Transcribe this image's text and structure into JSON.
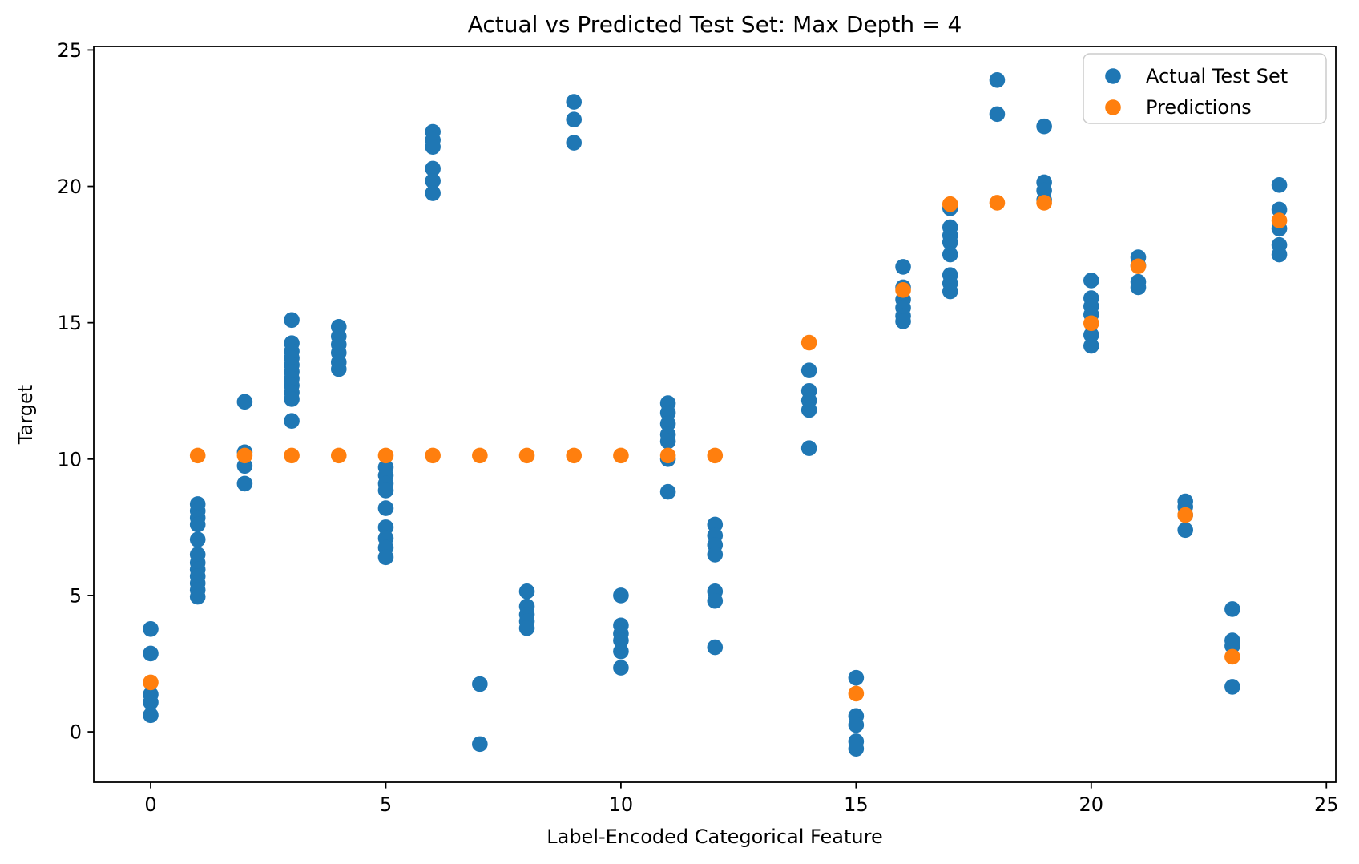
{
  "chart_data": {
    "type": "scatter",
    "title": "Actual vs Predicted Test Set: Max Depth = 4",
    "xlabel": "Label-Encoded Categorical Feature",
    "ylabel": "Target",
    "xlim": [
      -1.21,
      25.2
    ],
    "ylim": [
      -1.85,
      25.13
    ],
    "xticks": [
      0,
      5,
      10,
      15,
      20,
      25
    ],
    "yticks": [
      0,
      5,
      10,
      15,
      20,
      25
    ],
    "grid": false,
    "legend_position": "upper right",
    "marker_radius_px": 9.8,
    "series": [
      {
        "name": "Actual Test Set",
        "color": "#1f77b4",
        "points": [
          [
            0,
            3.77
          ],
          [
            0,
            2.87
          ],
          [
            0,
            1.37
          ],
          [
            0,
            1.08
          ],
          [
            0,
            0.61
          ],
          [
            1,
            8.35
          ],
          [
            1,
            8.1
          ],
          [
            1,
            7.85
          ],
          [
            1,
            7.6
          ],
          [
            1,
            7.05
          ],
          [
            1,
            6.5
          ],
          [
            1,
            6.2
          ],
          [
            1,
            5.95
          ],
          [
            1,
            5.7
          ],
          [
            1,
            5.45
          ],
          [
            1,
            5.2
          ],
          [
            1,
            4.95
          ],
          [
            2,
            12.1
          ],
          [
            2,
            10.25
          ],
          [
            2,
            9.75
          ],
          [
            2,
            9.1
          ],
          [
            3,
            15.1
          ],
          [
            3,
            14.25
          ],
          [
            3,
            13.95
          ],
          [
            3,
            13.7
          ],
          [
            3,
            13.45
          ],
          [
            3,
            13.2
          ],
          [
            3,
            12.95
          ],
          [
            3,
            12.7
          ],
          [
            3,
            12.45
          ],
          [
            3,
            12.2
          ],
          [
            3,
            11.4
          ],
          [
            4,
            14.85
          ],
          [
            4,
            14.5
          ],
          [
            4,
            14.2
          ],
          [
            4,
            13.9
          ],
          [
            4,
            13.55
          ],
          [
            4,
            13.3
          ],
          [
            5,
            9.7
          ],
          [
            5,
            9.4
          ],
          [
            5,
            9.1
          ],
          [
            5,
            8.85
          ],
          [
            5,
            8.2
          ],
          [
            5,
            7.5
          ],
          [
            5,
            7.1
          ],
          [
            5,
            6.75
          ],
          [
            5,
            6.4
          ],
          [
            6,
            22.0
          ],
          [
            6,
            21.7
          ],
          [
            6,
            21.45
          ],
          [
            6,
            20.65
          ],
          [
            6,
            20.2
          ],
          [
            6,
            19.75
          ],
          [
            7,
            1.75
          ],
          [
            7,
            -0.45
          ],
          [
            8,
            5.15
          ],
          [
            8,
            4.6
          ],
          [
            8,
            4.3
          ],
          [
            8,
            4.05
          ],
          [
            8,
            3.8
          ],
          [
            9,
            23.1
          ],
          [
            9,
            22.45
          ],
          [
            9,
            21.6
          ],
          [
            10,
            5.0
          ],
          [
            10,
            3.9
          ],
          [
            10,
            3.6
          ],
          [
            10,
            3.35
          ],
          [
            10,
            2.95
          ],
          [
            10,
            2.35
          ],
          [
            11,
            12.05
          ],
          [
            11,
            11.7
          ],
          [
            11,
            11.3
          ],
          [
            11,
            10.9
          ],
          [
            11,
            10.65
          ],
          [
            11,
            10.0
          ],
          [
            11,
            8.8
          ],
          [
            12,
            7.6
          ],
          [
            12,
            7.2
          ],
          [
            12,
            6.85
          ],
          [
            12,
            6.5
          ],
          [
            12,
            5.15
          ],
          [
            12,
            4.8
          ],
          [
            12,
            3.1
          ],
          [
            14,
            13.25
          ],
          [
            14,
            12.5
          ],
          [
            14,
            12.15
          ],
          [
            14,
            11.8
          ],
          [
            14,
            10.4
          ],
          [
            15,
            1.98
          ],
          [
            15,
            0.58
          ],
          [
            15,
            0.25
          ],
          [
            15,
            -0.35
          ],
          [
            15,
            -0.62
          ],
          [
            16,
            17.05
          ],
          [
            16,
            16.3
          ],
          [
            16,
            15.85
          ],
          [
            16,
            15.55
          ],
          [
            16,
            15.25
          ],
          [
            16,
            15.05
          ],
          [
            17,
            19.2
          ],
          [
            17,
            18.5
          ],
          [
            17,
            18.2
          ],
          [
            17,
            17.95
          ],
          [
            17,
            17.5
          ],
          [
            17,
            16.75
          ],
          [
            17,
            16.45
          ],
          [
            17,
            16.15
          ],
          [
            18,
            23.9
          ],
          [
            18,
            22.65
          ],
          [
            19,
            22.2
          ],
          [
            19,
            20.15
          ],
          [
            19,
            19.85
          ],
          [
            19,
            19.5
          ],
          [
            20,
            16.55
          ],
          [
            20,
            15.9
          ],
          [
            20,
            15.6
          ],
          [
            20,
            15.3
          ],
          [
            20,
            14.55
          ],
          [
            20,
            14.15
          ],
          [
            21,
            17.4
          ],
          [
            21,
            17.1
          ],
          [
            21,
            16.5
          ],
          [
            21,
            16.3
          ],
          [
            22,
            8.45
          ],
          [
            22,
            8.25
          ],
          [
            22,
            7.95
          ],
          [
            22,
            7.4
          ],
          [
            23,
            4.5
          ],
          [
            23,
            3.35
          ],
          [
            23,
            3.15
          ],
          [
            23,
            1.65
          ],
          [
            24,
            20.05
          ],
          [
            24,
            19.15
          ],
          [
            24,
            18.45
          ],
          [
            24,
            17.85
          ],
          [
            24,
            17.5
          ]
        ]
      },
      {
        "name": "Predictions",
        "color": "#ff7f0e",
        "points": [
          [
            0,
            1.81
          ],
          [
            1,
            10.13
          ],
          [
            2,
            10.13
          ],
          [
            3,
            10.13
          ],
          [
            4,
            10.13
          ],
          [
            5,
            10.13
          ],
          [
            6,
            10.13
          ],
          [
            7,
            10.13
          ],
          [
            8,
            10.13
          ],
          [
            9,
            10.13
          ],
          [
            10,
            10.13
          ],
          [
            11,
            10.13
          ],
          [
            12,
            10.13
          ],
          [
            14,
            14.27
          ],
          [
            15,
            1.4
          ],
          [
            16,
            16.2
          ],
          [
            17,
            19.35
          ],
          [
            18,
            19.4
          ],
          [
            19,
            19.4
          ],
          [
            20,
            14.98
          ],
          [
            21,
            17.07
          ],
          [
            22,
            7.95
          ],
          [
            23,
            2.75
          ],
          [
            24,
            18.75
          ]
        ]
      }
    ]
  }
}
